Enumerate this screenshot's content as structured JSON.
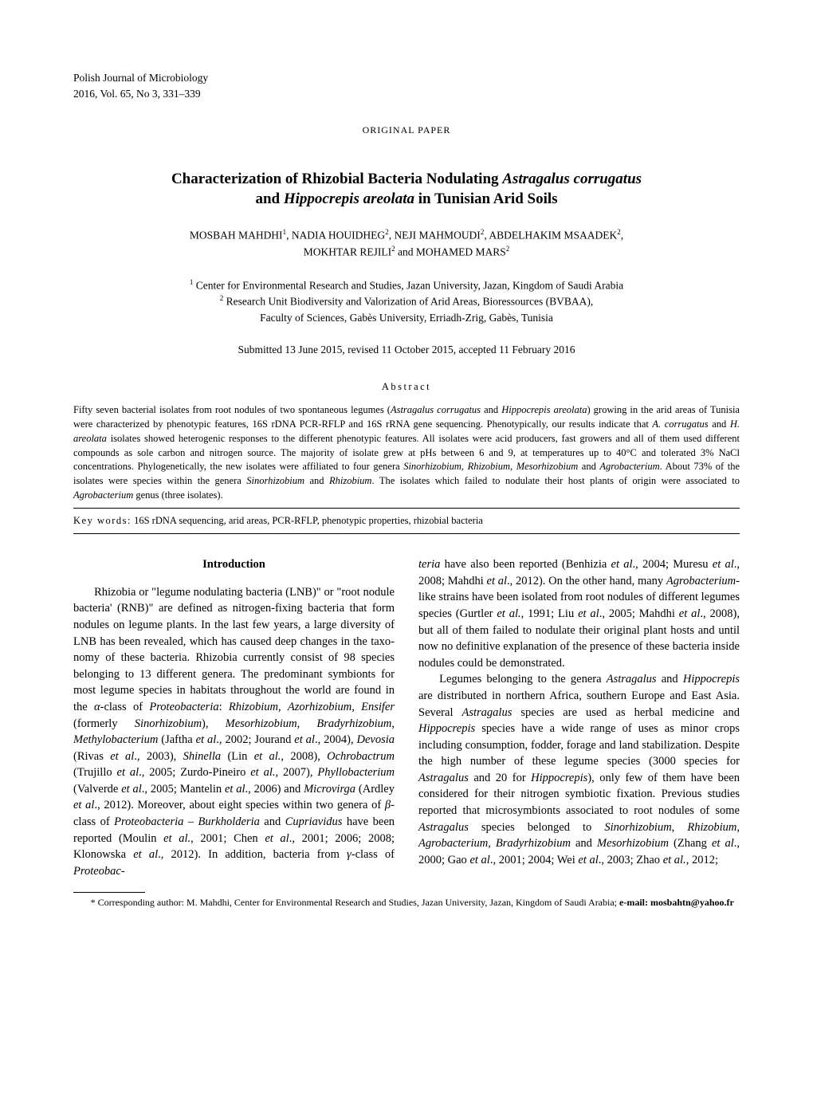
{
  "journal": {
    "name": "Polish Journal of Microbiology",
    "citation": "2016,  Vol. 65,  No 3,  331–339",
    "paper_type": "ORIGINAL PAPER"
  },
  "title_line1": "Characterization of Rhizobial Bacteria Nodulating ",
  "title_italic1": "Astragalus corrugatus",
  "title_line2": "and ",
  "title_italic2": "Hippocrepis areolata",
  "title_line3": " in Tunisian Arid Soils",
  "authors_line1": "MOSBAH MAHDHI",
  "authors_sup1": "1",
  "authors_sep1": ", NADIA HOUIDHEG",
  "authors_sup2": "2",
  "authors_sep2": ", NEJI MAHMOUDI",
  "authors_sup3": "2",
  "authors_sep3": ", ABDELHAKIM MSAADEK",
  "authors_sup4": "2",
  "authors_sep4": ",",
  "authors_line2": "MOKHTAR REJILI",
  "authors_sup5": "2",
  "authors_sep5": " and MOHAMED MARS",
  "authors_sup6": "2",
  "affil_sup1": "1",
  "affil1": " Center for Environmental Research and Studies, Jazan University, Jazan, Kingdom of Saudi Arabia",
  "affil_sup2": "2",
  "affil2": " Research Unit Biodiversity and Valorization of Arid Areas, Bioressources (BVBAA),",
  "affil3": "Faculty of Sciences, Gabès University, Erriadh-Zrig, Gabès, Tunisia",
  "dates": "Submitted 13 June 2015, revised 11 October 2015, accepted 11 February 2016",
  "abstract_label": "Abstract",
  "abstract": {
    "p1a": "Fifty seven bacterial isolates from root nodules of two spontaneous legumes (",
    "p1i1": "Astragalus corrugatus",
    "p1b": " and ",
    "p1i2": "Hippocrepis areolata",
    "p1c": ") growing in the arid areas of Tunisia were characterized by phenotypic features, 16S rDNA PCR-RFLP and 16S rRNA gene sequencing. Phenotypically, our results indicate that ",
    "p1i3": "A. corrugatus",
    "p1d": " and ",
    "p1i4": "H. areolata",
    "p1e": " isolates showed heterogenic responses to the different phenotypic features. All isolates were acid producers, fast growers and all of them used different compounds as sole carbon and nitrogen source. The majority of isolate grew at pHs between 6 and 9, at temperatures up to 40°C and tolerated 3% NaCl concentrations. Phylogenetically, the new isolates were affiliated to four genera ",
    "p1i5": "Sinorhizobium",
    "p1f": ", ",
    "p1i6": "Rhizobium",
    "p1g": ", ",
    "p1i7": "Mesorhizobium",
    "p1h": " and ",
    "p1i8": "Agrobacterium",
    "p1j": ". About 73% of the isolates were species within the genera ",
    "p1i9": "Sinorhizobium",
    "p1k": " and ",
    "p1i10": "Rhizobium",
    "p1l": ". The isolates which failed to nodulate their host plants of origin were associated to ",
    "p1i11": "Agrobacterium",
    "p1m": " genus (three isolates)."
  },
  "keywords_label": "Key words:",
  "keywords": "16S rDNA sequencing, arid areas, PCR-RFLP, phenotypic properties, rhizobial bacteria",
  "intro_heading": "Introduction",
  "col1": {
    "a": "Rhizobia or \"legume nodulating bacteria (LNB)\" or \"root nodule bacteria' (RNB)\" are defined as nitrogen-fixing bacteria that form nodules on legume plants. In the last few years, a large diversity of LNB has been revealed, which has caused deep changes in the taxo­nomy of these bacteria. Rhizobia currently consist of 98 species belonging to 13 different genera. The pre­dominant symbionts for most legume species in habi­tats throughout the world are found in the ",
    "i1": "α",
    "b": "-class of ",
    "i2": "Proteobacteria",
    "c": ": ",
    "i3": "Rhizobium",
    "d": ", ",
    "i4": "Azorhizobium",
    "e": ", ",
    "i5": "Ensifer",
    "f": " (for­merly ",
    "i6": "Sinorhizobium",
    "g": "), ",
    "i7": "Mesorhizobium",
    "h": ", ",
    "i8": "Bradyrhizobium",
    "j": ", ",
    "i9": "Methylobacterium",
    "k": " (Jaftha ",
    "i10": "et al",
    "l": "., 2002; Jourand ",
    "i11": "et al",
    "m": "., 2004), ",
    "i12": "Devosia",
    "n": " (Rivas ",
    "i13": "et al",
    "o": "., 2003), ",
    "i14": "Shinella",
    "p": " (Lin ",
    "i15": "et al.",
    "q": ", 2008), ",
    "i16": "Ochrobactrum",
    "r": " (Trujillo ",
    "i17": "et al",
    "s": "., 2005; Zurdo-Pineiro ",
    "i18": "et al.",
    "t": ", 2007), ",
    "i19": "Phyllobacterium",
    "u": " (Valverde ",
    "i20": "et al",
    "v": "., 2005; Mantelin ",
    "i21": "et al",
    "w": "., 2006) and ",
    "i22": "Microvirga",
    "x": " (Ardley ",
    "i23": "et al",
    "y": "., 2012). Moreover, about eight species within two genera of ",
    "i24": "β",
    "z": "-class of ",
    "i25": "Proteobacteria – Burkholde­ria",
    "aa": " and ",
    "i26": "Cupriavidus",
    "ab": " have been reported (Moulin ",
    "i27": "et al.",
    "ac": ", 2001; Chen ",
    "i28": "et al",
    "ad": "., 2001; 2006; 2008; Klonowska ",
    "i29": "et al",
    "ae": "., 2012). In addition, bacteria from ",
    "i30": "γ",
    "af": "-class of ",
    "i31": "Proteobac-"
  },
  "col2": {
    "a": "teria",
    "b": " have also been reported (Benhizia ",
    "i1": "et al",
    "c": "., 2004; Muresu ",
    "i2": "et al",
    "d": "., 2008; Mahdhi ",
    "i3": "et al",
    "e": "., 2012). On the other hand, many ",
    "i4": "Agrobacterium",
    "f": "-like strains have been iso­lated from root nodules of different legumes species (Gurtler ",
    "i5": "et al.",
    "g": ", 1991; Liu ",
    "i6": "et al",
    "h": "., 2005; Mahdhi ",
    "i7": "et al",
    "j": "., 2008), but all of them failed to nodulate their original plant hosts and until now no definitive explanation of the presence of these bacteria inside nodules could be demonstrated.",
    "p2a": "Legumes belonging to the genera ",
    "p2i1": "Astragalus",
    "p2b": " and ",
    "p2i2": "Hippocrepis",
    "p2c": " are distributed in northern Africa, south­ern Europe and East Asia. Several ",
    "p2i3": "Astragalus",
    "p2d": " species are used as herbal medicine and ",
    "p2i4": "Hippocrepis",
    "p2e": " species have a wide range of uses as minor crops including con­sumption, fodder, forage and land stabilization. Despite the high number of these legume species (3000 spe­cies for ",
    "p2i5": "Astragalus",
    "p2f": " and 20 for ",
    "p2i6": "Hippocrepis",
    "p2g": "), only few of them have been considered for their nitrogen symbiotic fixation. Previous studies reported that microsymbionts associated to root nodules of some ",
    "p2i7": "Astragalus",
    "p2h": " species belonged to ",
    "p2i8": "Sinorhizobium",
    "p2j": ", ",
    "p2i9": "Rhizobium",
    "p2k": ", ",
    "p2i10": "Agrobacterium, Bradyrhizobium",
    "p2l": " and ",
    "p2i11": "Mesorhizobium",
    "p2m": " (Zhang ",
    "p2i12": "et al",
    "p2n": "., 2000; Gao ",
    "p2i13": "et al",
    "p2o": "., 2001; 2004; Wei ",
    "p2i14": "et al",
    "p2p": "., 2003; Zhao ",
    "p2i15": "et al.",
    "p2q": ", 2012;"
  },
  "footnote": {
    "a": "* Corresponding author: M. Mahdhi, Center for Environmental Research and Studies, Jazan University, Jazan, Kingdom of Saudi Arabia; ",
    "b": "e-mail: mosbahtn@yahoo.fr"
  }
}
